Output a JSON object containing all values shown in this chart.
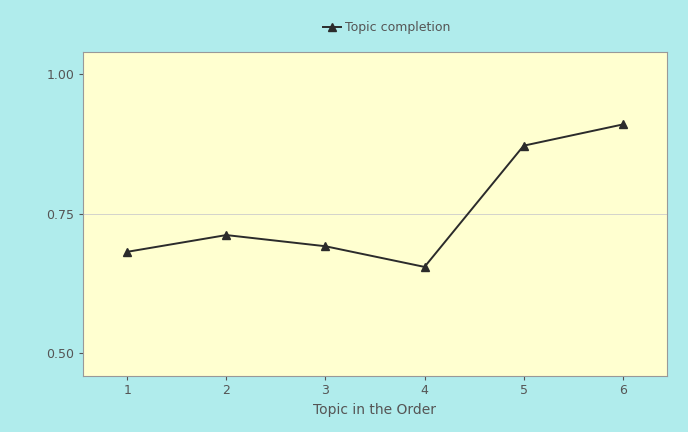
{
  "x": [
    1,
    2,
    3,
    4,
    5,
    6
  ],
  "y": [
    0.682,
    0.712,
    0.692,
    0.655,
    0.872,
    0.91
  ],
  "xlabel": "Topic in the Order",
  "legend_label": "Topic completion",
  "yticks": [
    0.5,
    0.75,
    1.0
  ],
  "ytick_labels": [
    "0.50",
    "0.75",
    "1.00"
  ],
  "xticks": [
    1,
    2,
    3,
    4,
    5,
    6
  ],
  "ylim": [
    0.46,
    1.04
  ],
  "xlim": [
    0.55,
    6.45
  ],
  "line_color": "#2b2b2b",
  "marker": "^",
  "marker_size": 6,
  "line_width": 1.4,
  "plot_bg_color": "#FFFFD0",
  "fig_bg_color": "#B0ECEC",
  "legend_fontsize": 9,
  "xlabel_fontsize": 10,
  "tick_fontsize": 9,
  "tick_color": "#555555",
  "spine_color": "#999999"
}
